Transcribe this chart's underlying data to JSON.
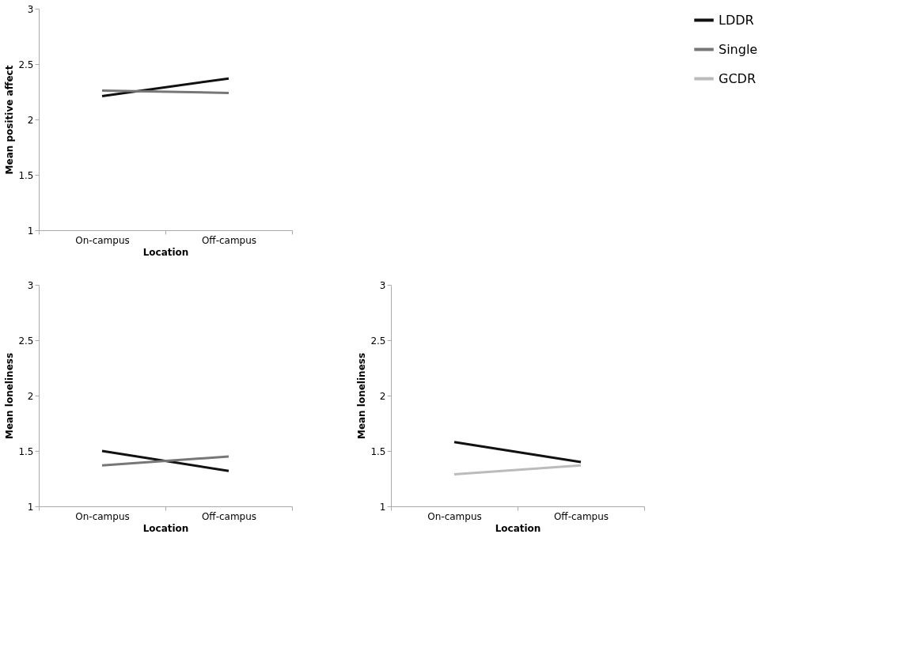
{
  "chart_data": [
    {
      "type": "line",
      "xlabel": "Location",
      "ylabel": "Mean positive affect",
      "categories": [
        "On-campus",
        "Off-campus"
      ],
      "ylim": [
        1,
        3
      ],
      "yticks": [
        1,
        1.5,
        2,
        2.5,
        3
      ],
      "grid": false,
      "marker": "none",
      "legend": "right",
      "series": [
        {
          "name": "LDDR",
          "color": "#111111",
          "values": [
            2.21,
            2.37
          ]
        },
        {
          "name": "Single",
          "color": "#777777",
          "values": [
            2.26,
            2.24
          ]
        }
      ]
    },
    {
      "type": "line",
      "xlabel": "Location",
      "ylabel": "Mean loneliness",
      "categories": [
        "On-campus",
        "Off-campus"
      ],
      "ylim": [
        1,
        3
      ],
      "yticks": [
        1,
        1.5,
        2,
        2.5,
        3
      ],
      "grid": false,
      "marker": "none",
      "series": [
        {
          "name": "LDDR",
          "color": "#111111",
          "values": [
            1.5,
            1.32
          ]
        },
        {
          "name": "Single",
          "color": "#777777",
          "values": [
            1.37,
            1.45
          ]
        }
      ]
    },
    {
      "type": "line",
      "xlabel": "Location",
      "ylabel": "Mean loneliness",
      "categories": [
        "On-campus",
        "Off-campus"
      ],
      "ylim": [
        1,
        3
      ],
      "yticks": [
        1,
        1.5,
        2,
        2.5,
        3
      ],
      "grid": false,
      "marker": "none",
      "series": [
        {
          "name": "LDDR",
          "color": "#111111",
          "values": [
            1.58,
            1.4
          ]
        },
        {
          "name": "GCDR",
          "color": "#bbbbbb",
          "values": [
            1.29,
            1.37
          ]
        }
      ]
    }
  ]
}
